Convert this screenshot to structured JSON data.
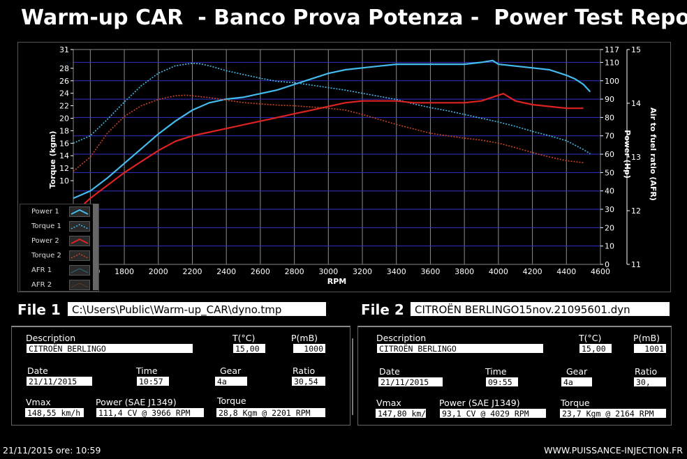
{
  "title": "Warm-up CAR  - Banco Prova Potenza -  Power Test Report",
  "colors": {
    "power1": "#44bbee",
    "torque1": "#44bbee",
    "power2": "#dd2222",
    "torque2": "#cc4422",
    "grid": "#3333cc",
    "axis": "#ffffff"
  },
  "chart_data": {
    "type": "line",
    "xlabel": "RPM",
    "ylabel_left": "Torque (kgm)",
    "ylabel_right1": "Power (Hp)",
    "ylabel_right2": "Air to fuel ratio (AFR)",
    "x_ticks": [
      1600,
      1800,
      2000,
      2200,
      2400,
      2600,
      2800,
      3000,
      3200,
      3400,
      3600,
      3800,
      4000,
      4200,
      4400,
      4600
    ],
    "x_tick_labels": [
      "1600",
      "1800",
      "2000",
      "2200",
      "2400",
      "2600",
      "2800",
      "3000",
      "3200",
      "3400",
      "3600",
      "3800",
      "4000",
      "4200",
      "4400",
      "4600"
    ],
    "xlim": [
      1500,
      4600
    ],
    "torque_ticks": [
      10,
      12,
      14,
      16,
      18,
      20,
      22,
      24,
      26,
      28,
      31
    ],
    "torque_tick_labels": [
      "10",
      "12",
      "14",
      "16",
      "18",
      "20",
      "22",
      "24",
      "26",
      "28",
      "31"
    ],
    "torque_lim": [
      -3.4,
      31
    ],
    "power_ticks": [
      0,
      10,
      20,
      30,
      40,
      50,
      60,
      70,
      80,
      90,
      100,
      110,
      117
    ],
    "power_tick_labels": [
      "0",
      "10",
      "20",
      "30",
      "40",
      "50",
      "60",
      "70",
      "80",
      "90",
      "100",
      "110",
      "117"
    ],
    "power_lim": [
      0,
      117
    ],
    "afr_ticks": [
      11,
      12,
      13,
      14,
      15
    ],
    "afr_tick_labels": [
      "11",
      "12",
      "13",
      "14",
      "15"
    ],
    "afr_lim": [
      11,
      15
    ],
    "series": [
      {
        "name": "Power 1",
        "axis": "power",
        "style": "solid",
        "color": "#44bbee",
        "x": [
          1500,
          1600,
          1700,
          1800,
          1900,
          2000,
          2100,
          2200,
          2300,
          2400,
          2500,
          2600,
          2700,
          2800,
          2900,
          3000,
          3100,
          3200,
          3300,
          3400,
          3500,
          3600,
          3700,
          3800,
          3900,
          3966,
          4000,
          4100,
          4200,
          4300,
          4400,
          4450,
          4500,
          4540
        ],
        "y": [
          36,
          40,
          47,
          55,
          63,
          71,
          78,
          84,
          88,
          90,
          91,
          93,
          95,
          98,
          101,
          104,
          106,
          107,
          108,
          109,
          109,
          109,
          109,
          109,
          110,
          111,
          109,
          108,
          107,
          106,
          103,
          101,
          98,
          94
        ]
      },
      {
        "name": "Torque 1",
        "axis": "torque",
        "style": "dotted",
        "color": "#44bbee",
        "x": [
          1500,
          1600,
          1700,
          1800,
          1900,
          2000,
          2100,
          2200,
          2250,
          2300,
          2400,
          2500,
          2600,
          2700,
          2800,
          2900,
          3000,
          3100,
          3200,
          3300,
          3400,
          3500,
          3600,
          3700,
          3800,
          3900,
          4000,
          4100,
          4200,
          4300,
          4400,
          4500,
          4540
        ],
        "y": [
          16.0,
          17.2,
          19.8,
          22.6,
          25.2,
          27.2,
          28.4,
          28.8,
          28.7,
          28.4,
          27.6,
          27.0,
          26.4,
          25.9,
          25.7,
          25.3,
          24.9,
          24.5,
          24.0,
          23.5,
          23.0,
          22.3,
          21.7,
          21.2,
          20.6,
          20.0,
          19.4,
          18.7,
          17.9,
          17.2,
          16.4,
          15.0,
          14.3
        ]
      },
      {
        "name": "Power 2",
        "axis": "power",
        "style": "solid",
        "color": "#dd2222",
        "x": [
          1530,
          1600,
          1700,
          1800,
          1900,
          2000,
          2100,
          2200,
          2300,
          2400,
          2500,
          2600,
          2700,
          2800,
          2900,
          3000,
          3100,
          3200,
          3300,
          3400,
          3500,
          3600,
          3700,
          3800,
          3900,
          4029,
          4100,
          4200,
          4300,
          4400,
          4500
        ],
        "y": [
          30,
          36,
          43,
          50,
          56,
          62,
          67,
          70,
          72,
          74,
          76,
          78,
          80,
          82,
          84,
          86,
          88,
          89,
          89,
          89,
          88,
          88,
          88,
          88,
          89,
          93,
          89,
          87,
          86,
          85,
          85
        ]
      },
      {
        "name": "Torque 2",
        "axis": "torque",
        "style": "dotted",
        "color": "#cc4422",
        "x": [
          1500,
          1600,
          1700,
          1800,
          1900,
          2000,
          2100,
          2164,
          2200,
          2300,
          2400,
          2500,
          2600,
          2700,
          2800,
          2900,
          3000,
          3100,
          3200,
          3300,
          3400,
          3500,
          3600,
          3700,
          3800,
          3900,
          4000,
          4100,
          4200,
          4300,
          4400,
          4500
        ],
        "y": [
          11.5,
          13.8,
          17.6,
          20.3,
          22.0,
          23.0,
          23.6,
          23.7,
          23.6,
          23.3,
          22.9,
          22.5,
          22.3,
          22.1,
          22.0,
          21.8,
          21.6,
          21.3,
          20.6,
          19.8,
          19.0,
          18.3,
          17.6,
          17.2,
          16.8,
          16.5,
          16.0,
          15.3,
          14.5,
          13.8,
          13.2,
          12.9
        ]
      }
    ],
    "legend": [
      "Power 1",
      "Torque 1",
      "Power 2",
      "Torque 2",
      "AFR 1",
      "AFR 2"
    ],
    "grid": true,
    "legend_position": "bottom-left"
  },
  "file1": {
    "label": "File 1",
    "path": "C:\\Users\\Public\\Warm-up_CAR\\dyno.tmp"
  },
  "file2": {
    "label": "File 2",
    "path": "CITROËN BERLINGO15nov.21095601.dyn"
  },
  "panel_labels": {
    "description": "Description",
    "temp": "T(°C)",
    "pressure": "P(mB)",
    "date": "Date",
    "time": "Time",
    "gear": "Gear",
    "ratio": "Ratio",
    "vmax": "Vmax",
    "power": "Power (SAE J1349)",
    "torque": "Torque"
  },
  "report1": {
    "description": "CITROËN BERLINGO",
    "temp": "15,00",
    "pressure": "1000",
    "date": "21/11/2015",
    "time": "10:57",
    "gear": "4a",
    "ratio": "30,54",
    "vmax": "148,55 km/h",
    "power": "111,4 CV  @ 3966  RPM",
    "torque": "28,8 Kgm  @ 2201  RPM"
  },
  "report2": {
    "description": "CITROËN BERLINGO",
    "temp": "15,00",
    "pressure": "1001",
    "date": "21/11/2015",
    "time": "09:55",
    "gear": "4a",
    "ratio": "30,",
    "vmax": "147,80 km/",
    "power": "93,1 CV  @ 4029  RPM",
    "torque": "23,7 Kgm  @ 2164  RPM"
  },
  "footer": {
    "datetime": "21/11/2015  ore: 10:59",
    "website": "WWW.PUISSANCE-INJECTION.FR"
  }
}
